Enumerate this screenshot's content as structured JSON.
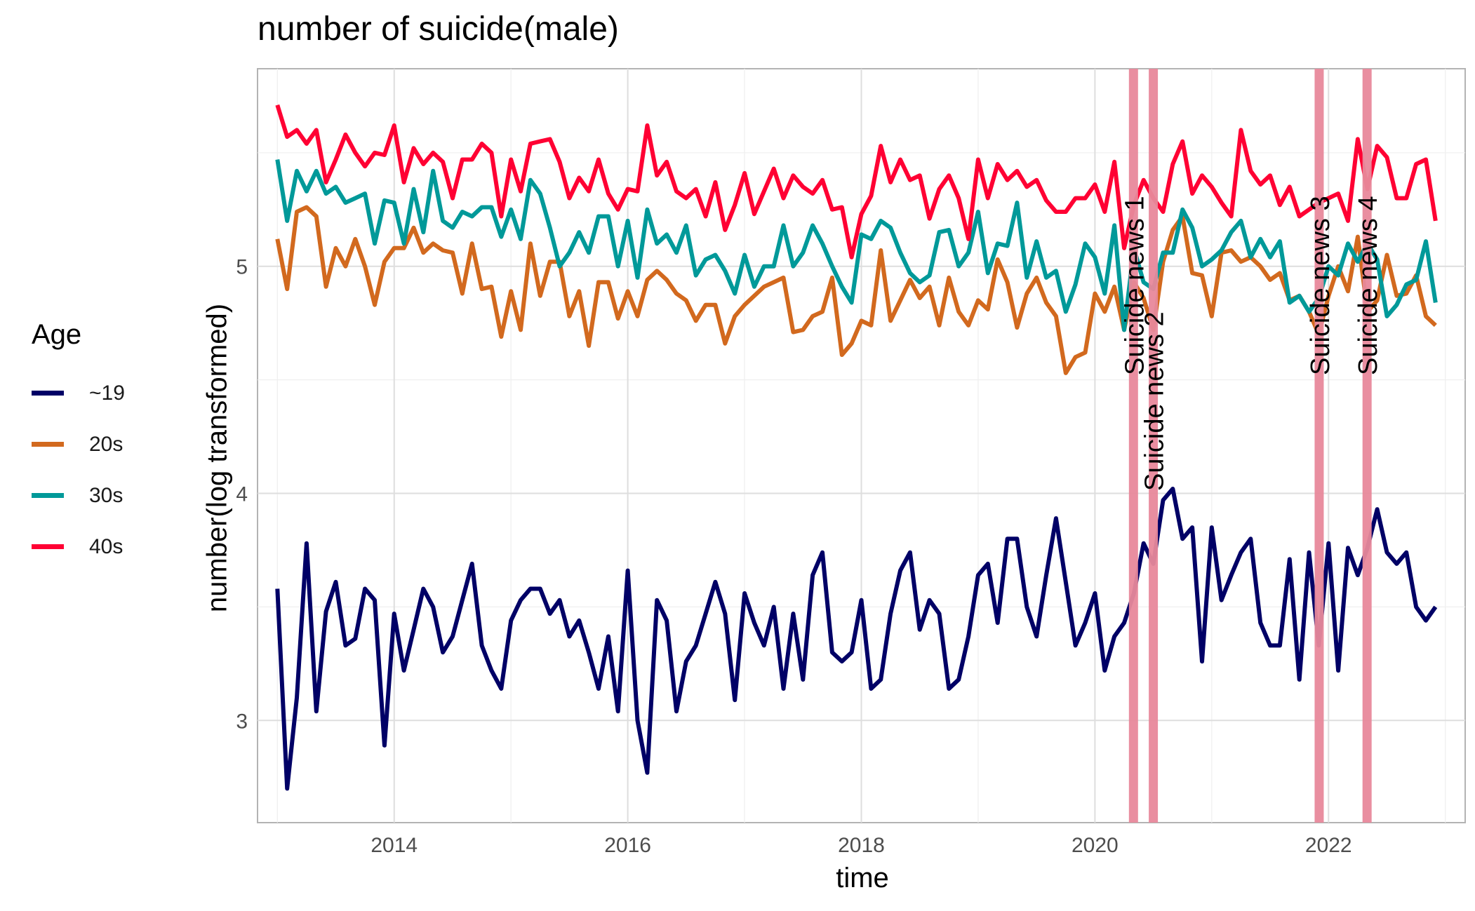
{
  "chart_data": {
    "type": "line",
    "title": "number of suicide(male)",
    "xlabel": "time",
    "ylabel": "number(log transformed)",
    "xlim": [
      2012.83,
      2023.17
    ],
    "ylim": [
      2.55,
      5.87
    ],
    "x_ticks": [
      2014,
      2016,
      2018,
      2020,
      2022
    ],
    "y_ticks": [
      3,
      4,
      5
    ],
    "grid": true,
    "legend": {
      "title": "Age",
      "position": "left"
    },
    "x_start": 2013.0,
    "x_step_months": 1,
    "series": [
      {
        "name": "~19",
        "color": "#000066",
        "values": [
          3.58,
          2.7,
          3.1,
          3.78,
          3.04,
          3.48,
          3.61,
          3.33,
          3.36,
          3.58,
          3.53,
          2.89,
          3.47,
          3.22,
          3.4,
          3.58,
          3.5,
          3.3,
          3.37,
          3.53,
          3.69,
          3.33,
          3.22,
          3.14,
          3.44,
          3.53,
          3.58,
          3.58,
          3.47,
          3.53,
          3.37,
          3.44,
          3.3,
          3.14,
          3.37,
          3.04,
          3.66,
          3.0,
          2.77,
          3.53,
          3.44,
          3.04,
          3.26,
          3.33,
          3.47,
          3.61,
          3.47,
          3.09,
          3.56,
          3.43,
          3.33,
          3.5,
          3.14,
          3.47,
          3.18,
          3.64,
          3.74,
          3.3,
          3.26,
          3.3,
          3.53,
          3.14,
          3.18,
          3.47,
          3.66,
          3.74,
          3.4,
          3.53,
          3.47,
          3.14,
          3.18,
          3.37,
          3.64,
          3.69,
          3.43,
          3.8,
          3.8,
          3.5,
          3.37,
          3.64,
          3.89,
          3.61,
          3.33,
          3.43,
          3.56,
          3.22,
          3.37,
          3.43,
          3.56,
          3.78,
          3.69,
          3.97,
          4.02,
          3.8,
          3.85,
          3.26,
          3.85,
          3.53,
          3.64,
          3.74,
          3.8,
          3.43,
          3.33,
          3.33,
          3.71,
          3.18,
          3.74,
          3.33,
          3.78,
          3.22,
          3.76,
          3.64,
          3.76,
          3.93,
          3.74,
          3.69,
          3.74,
          3.5,
          3.44,
          3.5
        ]
      },
      {
        "name": "20s",
        "color": "#D2691E",
        "values": [
          5.12,
          4.9,
          5.24,
          5.26,
          5.22,
          4.91,
          5.08,
          5.0,
          5.12,
          5.0,
          4.83,
          5.02,
          5.08,
          5.08,
          5.17,
          5.06,
          5.1,
          5.07,
          5.06,
          4.88,
          5.1,
          4.9,
          4.91,
          4.69,
          4.89,
          4.72,
          5.1,
          4.87,
          5.02,
          5.02,
          4.78,
          4.89,
          4.65,
          4.93,
          4.93,
          4.77,
          4.89,
          4.78,
          4.94,
          4.98,
          4.94,
          4.88,
          4.85,
          4.76,
          4.83,
          4.83,
          4.66,
          4.78,
          4.83,
          4.87,
          4.91,
          4.93,
          4.95,
          4.71,
          4.72,
          4.78,
          4.8,
          4.95,
          4.61,
          4.66,
          4.76,
          4.74,
          5.07,
          4.76,
          4.85,
          4.94,
          4.86,
          4.91,
          4.74,
          4.95,
          4.8,
          4.74,
          4.85,
          4.81,
          5.03,
          4.93,
          4.73,
          4.88,
          4.95,
          4.84,
          4.78,
          4.53,
          4.6,
          4.62,
          4.88,
          4.8,
          4.91,
          4.72,
          4.93,
          4.86,
          4.72,
          5.02,
          5.16,
          5.22,
          4.97,
          4.96,
          4.78,
          5.06,
          5.07,
          5.02,
          5.04,
          5.0,
          4.94,
          4.97,
          4.85,
          4.87,
          4.8,
          4.7,
          4.87,
          5.0,
          4.89,
          5.13,
          4.8,
          4.85,
          5.05,
          4.87,
          4.88,
          4.96,
          4.78,
          4.74
        ]
      },
      {
        "name": "30s",
        "color": "#009999",
        "values": [
          5.47,
          5.2,
          5.42,
          5.33,
          5.42,
          5.32,
          5.35,
          5.28,
          5.3,
          5.32,
          5.1,
          5.29,
          5.28,
          5.1,
          5.34,
          5.15,
          5.42,
          5.2,
          5.17,
          5.24,
          5.22,
          5.26,
          5.26,
          5.13,
          5.25,
          5.12,
          5.38,
          5.32,
          5.17,
          5.0,
          5.06,
          5.15,
          5.06,
          5.22,
          5.22,
          5.0,
          5.2,
          4.95,
          5.25,
          5.1,
          5.14,
          5.06,
          5.18,
          4.96,
          5.03,
          5.05,
          4.98,
          4.88,
          5.05,
          4.91,
          5.0,
          5.0,
          5.18,
          5.0,
          5.06,
          5.18,
          5.1,
          5.0,
          4.91,
          4.84,
          5.14,
          5.12,
          5.2,
          5.17,
          5.06,
          4.97,
          4.93,
          4.96,
          5.15,
          5.16,
          5.0,
          5.06,
          5.24,
          4.97,
          5.1,
          5.09,
          5.28,
          4.95,
          5.11,
          4.95,
          4.98,
          4.8,
          4.92,
          5.1,
          5.04,
          4.88,
          5.18,
          4.72,
          5.08,
          4.93,
          4.9,
          5.06,
          5.06,
          5.25,
          5.17,
          5.0,
          5.03,
          5.07,
          5.15,
          5.2,
          5.04,
          5.12,
          5.04,
          5.11,
          4.84,
          4.87,
          4.8,
          4.86,
          5.0,
          4.96,
          5.1,
          5.02,
          5.1,
          5.03,
          4.78,
          4.83,
          4.92,
          4.94,
          5.11,
          4.84
        ]
      },
      {
        "name": "40s",
        "color": "#FF0033",
        "values": [
          5.71,
          5.57,
          5.6,
          5.54,
          5.6,
          5.37,
          5.47,
          5.58,
          5.5,
          5.44,
          5.5,
          5.49,
          5.62,
          5.37,
          5.52,
          5.45,
          5.5,
          5.46,
          5.3,
          5.47,
          5.47,
          5.54,
          5.5,
          5.22,
          5.47,
          5.33,
          5.54,
          5.55,
          5.56,
          5.46,
          5.3,
          5.39,
          5.33,
          5.47,
          5.32,
          5.25,
          5.34,
          5.33,
          5.62,
          5.4,
          5.46,
          5.33,
          5.3,
          5.34,
          5.22,
          5.37,
          5.16,
          5.27,
          5.41,
          5.23,
          5.33,
          5.43,
          5.3,
          5.4,
          5.35,
          5.32,
          5.38,
          5.25,
          5.26,
          5.04,
          5.23,
          5.31,
          5.53,
          5.37,
          5.47,
          5.38,
          5.4,
          5.21,
          5.34,
          5.4,
          5.3,
          5.12,
          5.47,
          5.3,
          5.45,
          5.38,
          5.42,
          5.35,
          5.38,
          5.29,
          5.24,
          5.24,
          5.3,
          5.3,
          5.36,
          5.24,
          5.46,
          5.08,
          5.27,
          5.38,
          5.3,
          5.24,
          5.45,
          5.55,
          5.32,
          5.4,
          5.35,
          5.28,
          5.22,
          5.6,
          5.42,
          5.36,
          5.4,
          5.27,
          5.35,
          5.22,
          5.25,
          5.28,
          5.3,
          5.32,
          5.2,
          5.56,
          5.34,
          5.53,
          5.48,
          5.3,
          5.3,
          5.45,
          5.47,
          5.2
        ]
      }
    ],
    "annotations": [
      {
        "label": "Suicide news 1",
        "x": 2020.33,
        "color": "#E8899B"
      },
      {
        "label": "Suicide news 2",
        "x": 2020.5,
        "color": "#E8899B"
      },
      {
        "label": "Suicide news 3",
        "x": 2021.92,
        "color": "#E8899B"
      },
      {
        "label": "Suicide news 4",
        "x": 2022.33,
        "color": "#E8899B"
      }
    ]
  }
}
